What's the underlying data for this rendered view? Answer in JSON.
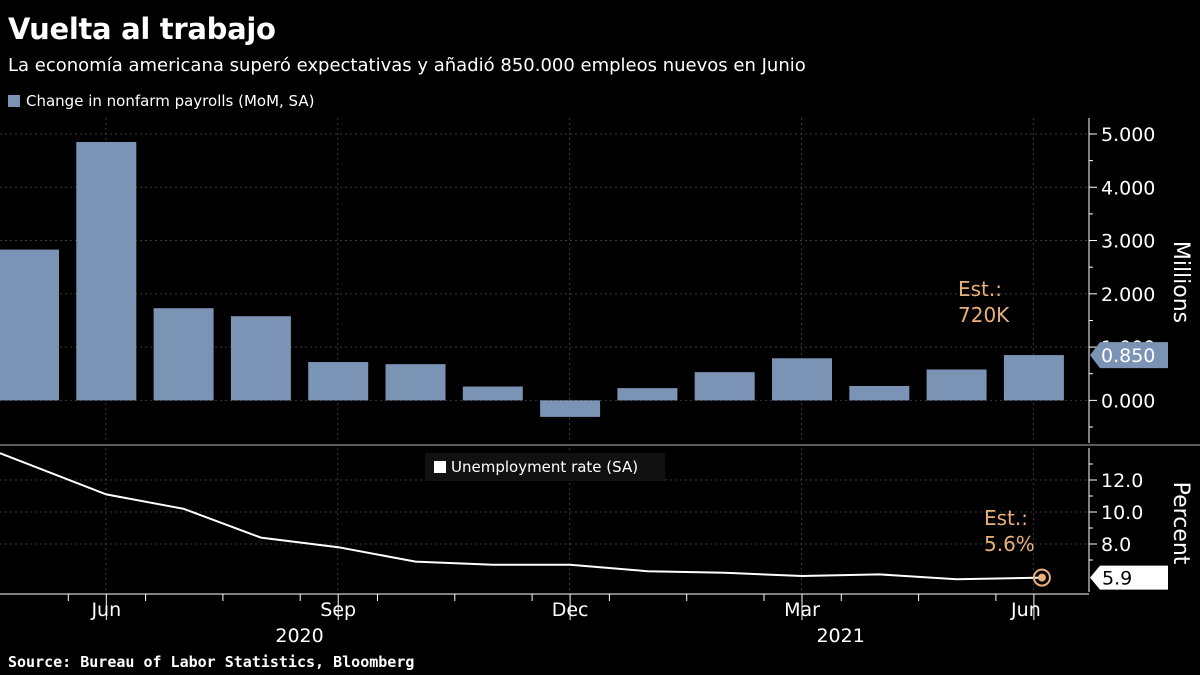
{
  "title": "Vuelta al trabajo",
  "subtitle": "La economía americana superó expectativas y añadió 850.000 empleos nuevos en Junio",
  "source": "Source: Bureau of Labor Statistics, Bloomberg",
  "colors": {
    "background": "#000000",
    "bar": "#7b93b5",
    "line": "#ffffff",
    "estimate": "#e8b07a",
    "grid": "#3a3a3a",
    "axis": "#ffffff"
  },
  "chart_data": [
    {
      "type": "bar",
      "legend": "Change in nonfarm payrolls (MoM, SA)",
      "ylabel": "Millions",
      "ylim": [
        -0.8,
        5.3
      ],
      "yticks": [
        "5.000",
        "4.000",
        "3.000",
        "2.000",
        "1.000",
        "0.000"
      ],
      "ytick_values": [
        5,
        4,
        3,
        2,
        1,
        0
      ],
      "categories": [
        "May 2020",
        "Jun 2020",
        "Jul 2020",
        "Aug 2020",
        "Sep 2020",
        "Oct 2020",
        "Nov 2020",
        "Dec 2020",
        "Jan 2021",
        "Feb 2021",
        "Mar 2021",
        "Apr 2021",
        "May 2021",
        "Jun 2021"
      ],
      "values": [
        2.83,
        4.85,
        1.73,
        1.58,
        0.72,
        0.68,
        0.26,
        -0.31,
        0.23,
        0.53,
        0.79,
        0.27,
        0.58,
        0.85
      ],
      "last_value_label": "0.850",
      "annotation": {
        "line1": "Est.:",
        "line2": "720K"
      }
    },
    {
      "type": "line",
      "legend": "Unemployment rate (SA)",
      "ylabel": "Percent",
      "ylim": [
        5.0,
        14.0
      ],
      "yticks": [
        "12.0",
        "10.0",
        "8.0"
      ],
      "ytick_values": [
        12,
        10,
        8
      ],
      "x": [
        "May 2020",
        "Jun 2020",
        "Jul 2020",
        "Aug 2020",
        "Sep 2020",
        "Oct 2020",
        "Nov 2020",
        "Dec 2020",
        "Jan 2021",
        "Feb 2021",
        "Mar 2021",
        "Apr 2021",
        "May 2021",
        "Jun 2021"
      ],
      "values": [
        13.3,
        11.1,
        10.2,
        8.4,
        7.8,
        6.9,
        6.7,
        6.7,
        6.3,
        6.2,
        6.0,
        6.1,
        5.8,
        5.9
      ],
      "last_value_label": "5.9",
      "annotation": {
        "line1": "Est.:",
        "line2": "5.6%"
      }
    }
  ],
  "xaxis": {
    "month_labels": [
      "Jun",
      "Sep",
      "Dec",
      "Mar",
      "Jun"
    ],
    "month_label_index": [
      1,
      4,
      7,
      10,
      13
    ],
    "year_labels": [
      "2020",
      "2021"
    ],
    "year_label_index": [
      3.5,
      10.5
    ]
  }
}
